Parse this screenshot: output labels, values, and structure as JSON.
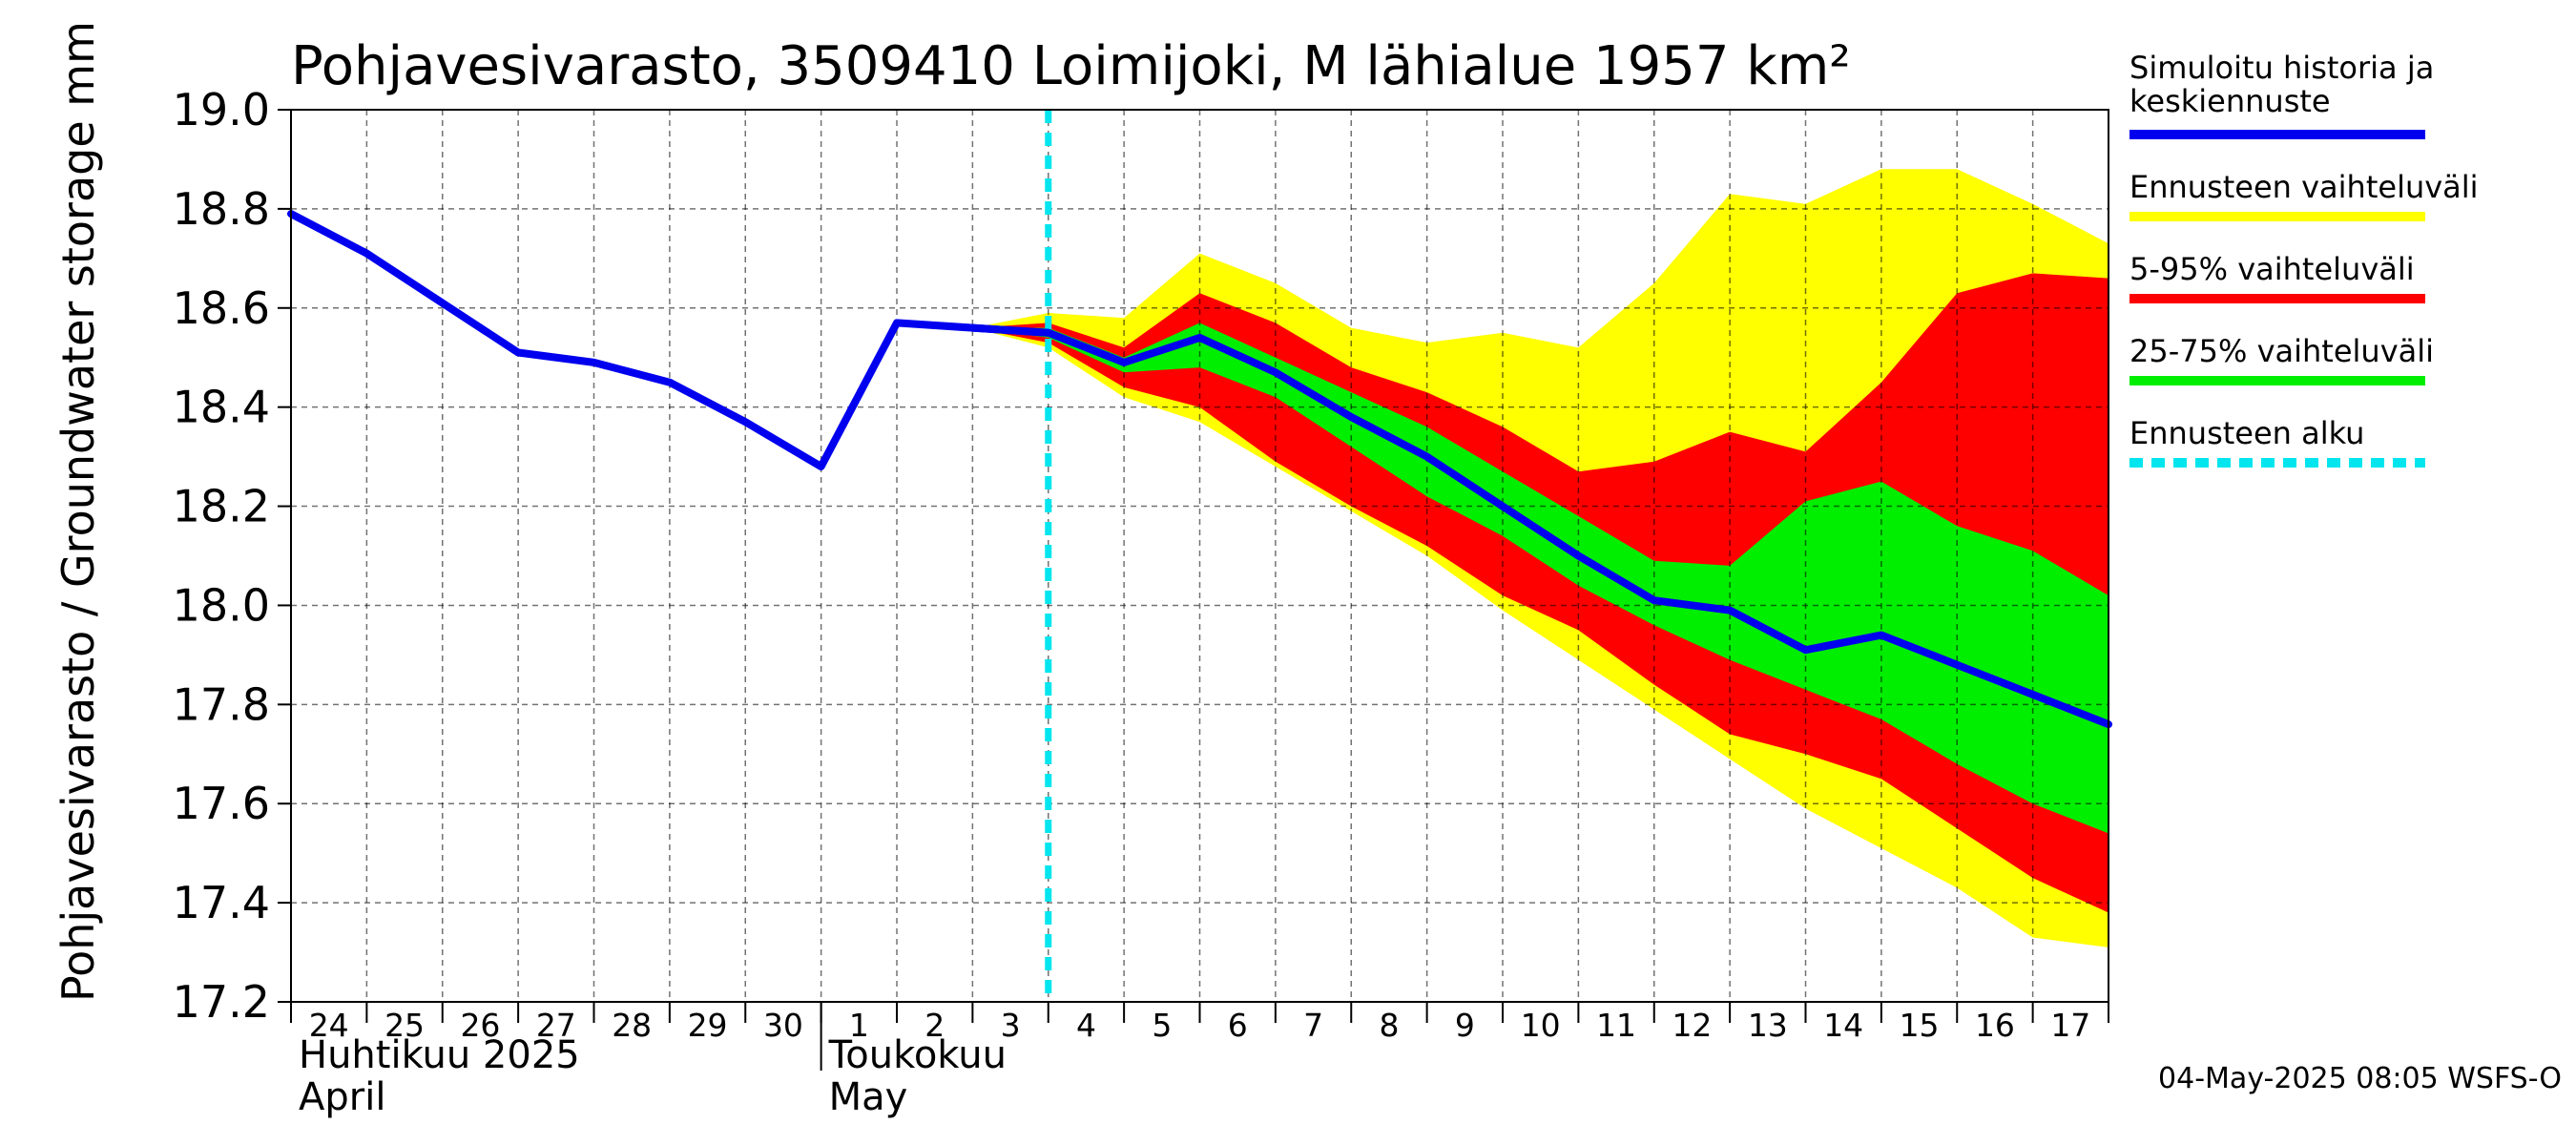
{
  "chart_data": {
    "type": "area",
    "title": "Pohjavesivarasto, 3509410 Loimijoki, M lähialue 1957 km²",
    "ylabel": "Pohjavesivarasto / Groundwater storage   mm",
    "ylim": [
      17.2,
      19.0
    ],
    "yticks": [
      "17.2",
      "17.4",
      "17.6",
      "17.8",
      "18.0",
      "18.2",
      "18.4",
      "18.6",
      "18.8",
      "19.0"
    ],
    "x_days": [
      "24",
      "25",
      "26",
      "27",
      "28",
      "29",
      "30",
      "1",
      "2",
      "3",
      "4",
      "5",
      "6",
      "7",
      "8",
      "9",
      "10",
      "11",
      "12",
      "13",
      "14",
      "15",
      "16",
      "17"
    ],
    "months": [
      {
        "line1": "Huhtikuu  2025",
        "line2": "April",
        "start_index": 0
      },
      {
        "line1": "Toukokuu",
        "line2": "May",
        "start_index": 7
      }
    ],
    "forecast_start_x": 10,
    "history": {
      "x": [
        0,
        1,
        2,
        3,
        4,
        5,
        6,
        7,
        8,
        9,
        10
      ],
      "y": [
        18.79,
        18.71,
        18.61,
        18.51,
        18.49,
        18.45,
        18.37,
        18.28,
        18.57,
        18.56,
        18.55
      ]
    },
    "median": {
      "x": [
        9,
        10,
        11,
        12,
        13,
        14,
        15,
        16,
        17,
        18,
        19,
        20,
        21,
        22,
        23,
        24
      ],
      "y": [
        18.56,
        18.55,
        18.49,
        18.54,
        18.47,
        18.38,
        18.3,
        18.2,
        18.1,
        18.01,
        17.99,
        17.91,
        17.94,
        17.88,
        17.82,
        17.76
      ]
    },
    "bands": {
      "x": [
        9,
        10,
        11,
        12,
        13,
        14,
        15,
        16,
        17,
        18,
        19,
        20,
        21,
        22,
        23,
        24
      ],
      "full_upper": [
        18.56,
        18.59,
        18.58,
        18.71,
        18.65,
        18.56,
        18.53,
        18.55,
        18.52,
        18.65,
        18.83,
        18.81,
        18.88,
        18.88,
        18.81,
        18.73
      ],
      "p95": [
        18.56,
        18.57,
        18.52,
        18.63,
        18.57,
        18.48,
        18.43,
        18.36,
        18.27,
        18.29,
        18.35,
        18.31,
        18.45,
        18.63,
        18.67,
        18.66
      ],
      "p75": [
        18.56,
        18.56,
        18.5,
        18.57,
        18.5,
        18.43,
        18.36,
        18.27,
        18.18,
        18.09,
        18.08,
        18.21,
        18.25,
        18.16,
        18.11,
        18.02
      ],
      "p25": [
        18.56,
        18.54,
        18.47,
        18.48,
        18.42,
        18.32,
        18.22,
        18.14,
        18.04,
        17.96,
        17.89,
        17.83,
        17.77,
        17.68,
        17.6,
        17.54
      ],
      "p5": [
        18.56,
        18.53,
        18.44,
        18.4,
        18.29,
        18.2,
        18.12,
        18.02,
        17.95,
        17.84,
        17.74,
        17.7,
        17.65,
        17.55,
        17.45,
        17.38
      ],
      "full_lower": [
        18.56,
        18.52,
        18.42,
        18.37,
        18.28,
        18.19,
        18.1,
        17.99,
        17.89,
        17.79,
        17.69,
        17.59,
        17.51,
        17.43,
        17.33,
        17.31
      ]
    },
    "legend": [
      {
        "label": "Simuloitu historia ja",
        "label2": "keskiennuste",
        "color": "#0000ee",
        "style": "solid"
      },
      {
        "label": "Ennusteen vaihteluväli",
        "color": "#ffff00",
        "style": "solid"
      },
      {
        "label": "5-95% vaihteluväli",
        "color": "#ff0000",
        "style": "solid"
      },
      {
        "label": "25-75% vaihteluväli",
        "color": "#00ee00",
        "style": "solid"
      },
      {
        "label": "Ennusteen alku",
        "color": "#00e5ee",
        "style": "dashed"
      }
    ],
    "legend_position": "right",
    "footer": "04-May-2025 08:05 WSFS-O",
    "grid": true
  }
}
